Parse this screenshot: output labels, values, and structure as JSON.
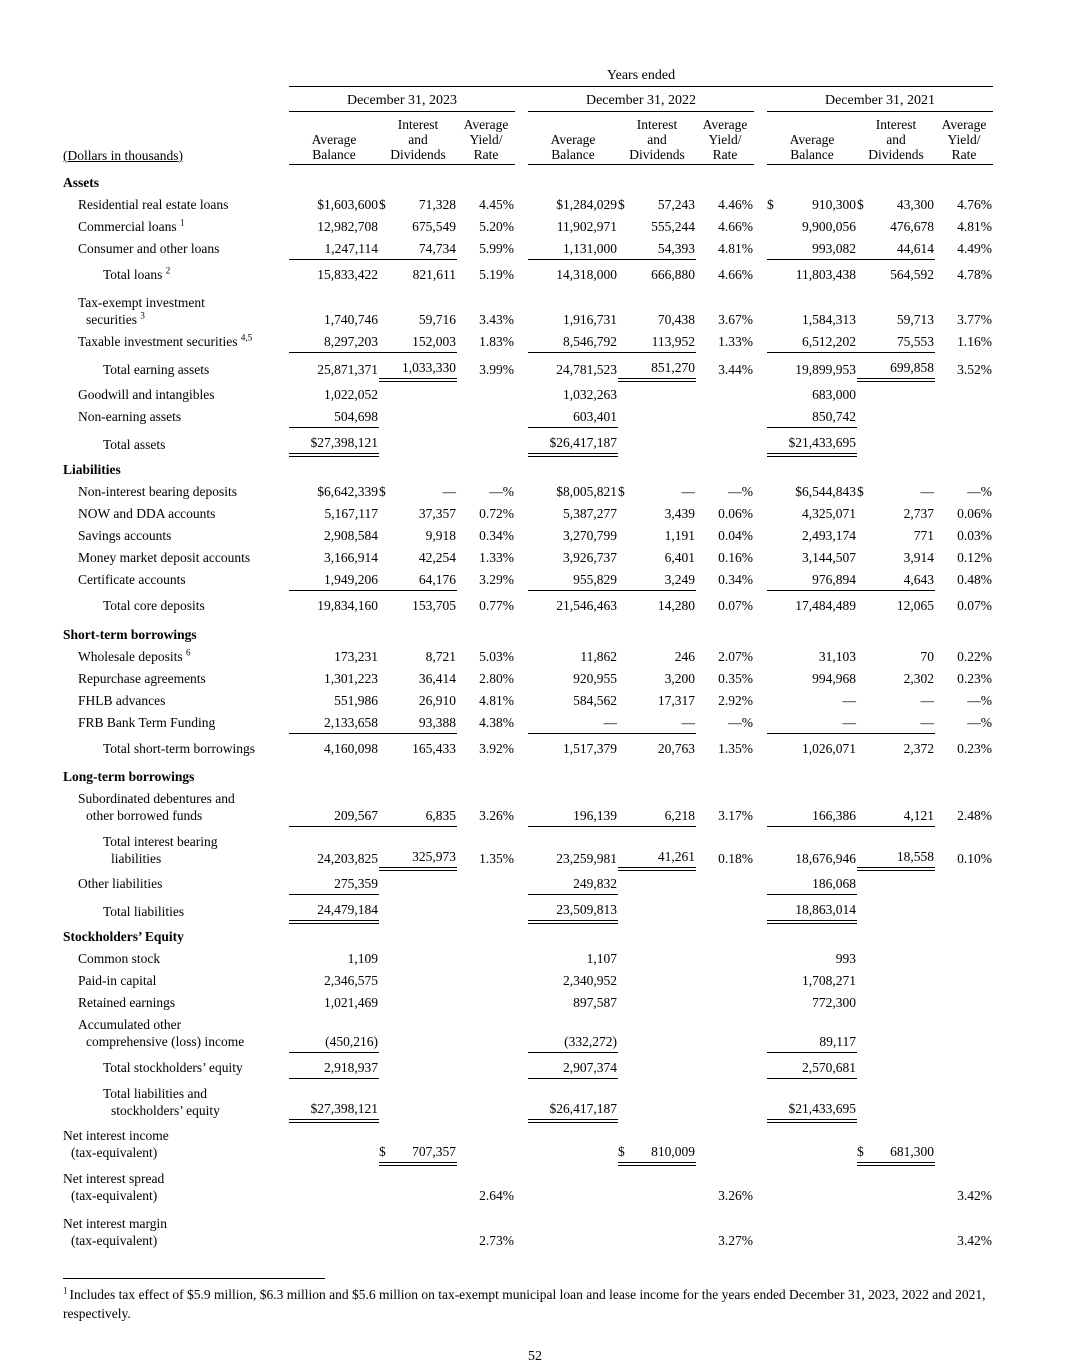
{
  "meta": {
    "page_number": "52"
  },
  "header": {
    "years_ended": "Years ended",
    "dollars_note": "(Dollars in thousands)",
    "year_groups": [
      "December 31, 2023",
      "December 31, 2022",
      "December 31, 2021"
    ],
    "col_headers": [
      "Average\nBalance",
      "Interest\nand\nDividends",
      "Average\nYield/\nRate"
    ]
  },
  "rows": [
    {
      "cls": "section",
      "label": "Assets",
      "cells": [
        "",
        "",
        "",
        "",
        "",
        "",
        "",
        "",
        ""
      ]
    },
    {
      "cls": "item",
      "label": "Residential real estate loans",
      "cells": [
        "$1,603,600",
        {
          "d": "$",
          "v": "71,328"
        },
        "4.45%",
        "$1,284,029",
        {
          "d": "$",
          "v": "57,243"
        },
        "4.46%",
        {
          "d": "$",
          "v": "910,300"
        },
        {
          "d": "$",
          "v": "43,300"
        },
        "4.76%"
      ]
    },
    {
      "cls": "item",
      "label": "Commercial loans",
      "sup": "1",
      "cells": [
        "12,982,708",
        "675,549",
        "5.20%",
        "11,902,971",
        "555,244",
        "4.66%",
        "9,900,056",
        "476,678",
        "4.81%"
      ]
    },
    {
      "cls": "item",
      "label": "Consumer and other loans",
      "cells": [
        {
          "v": "1,247,114",
          "u": "s"
        },
        {
          "v": "74,734",
          "u": "s"
        },
        "5.99%",
        {
          "v": "1,131,000",
          "u": "s"
        },
        {
          "v": "54,393",
          "u": "s"
        },
        "4.81%",
        {
          "v": "993,082",
          "u": "s"
        },
        {
          "v": "44,614",
          "u": "s"
        },
        "4.49%"
      ]
    },
    {
      "cls": "total",
      "label": "Total loans",
      "sup": "2",
      "cells": [
        "15,833,422",
        "821,611",
        "5.19%",
        "14,318,000",
        "666,880",
        "4.66%",
        "11,803,438",
        "564,592",
        "4.78%"
      ]
    },
    {
      "cls": "item",
      "gap": true,
      "lines": [
        {
          "t": "Tax-exempt investment"
        },
        {
          "t": "securities",
          "s": "3"
        }
      ],
      "cells": [
        "1,740,746",
        "59,716",
        "3.43%",
        "1,916,731",
        "70,438",
        "3.67%",
        "1,584,313",
        "59,713",
        "3.77%"
      ]
    },
    {
      "cls": "item",
      "label": "Taxable investment securities",
      "sup": "4,5",
      "cells": [
        {
          "v": "8,297,203",
          "u": "s"
        },
        {
          "v": "152,003",
          "u": "s"
        },
        "1.83%",
        {
          "v": "8,546,792",
          "u": "s"
        },
        {
          "v": "113,952",
          "u": "s"
        },
        "1.33%",
        {
          "v": "6,512,202",
          "u": "s"
        },
        {
          "v": "75,553",
          "u": "s"
        },
        "1.16%"
      ]
    },
    {
      "cls": "total",
      "label": "Total earning assets",
      "cells": [
        "25,871,371",
        {
          "v": "1,033,330",
          "u": "d"
        },
        "3.99%",
        "24,781,523",
        {
          "v": "851,270",
          "u": "d"
        },
        "3.44%",
        "19,899,953",
        {
          "v": "699,858",
          "u": "d"
        },
        "3.52%"
      ]
    },
    {
      "cls": "item",
      "label": "Goodwill and intangibles",
      "cells": [
        "1,022,052",
        "",
        "",
        "1,032,263",
        "",
        "",
        "683,000",
        "",
        ""
      ]
    },
    {
      "cls": "item",
      "label": "Non-earning assets",
      "cells": [
        {
          "v": "504,698",
          "u": "s"
        },
        "",
        "",
        {
          "v": "603,401",
          "u": "s"
        },
        "",
        "",
        {
          "v": "850,742",
          "u": "s"
        },
        "",
        ""
      ]
    },
    {
      "cls": "total",
      "label": "Total assets",
      "cells": [
        {
          "v": "$27,398,121",
          "u": "d"
        },
        "",
        "",
        {
          "v": "$26,417,187",
          "u": "d"
        },
        "",
        "",
        {
          "v": "$21,433,695",
          "u": "d"
        },
        "",
        ""
      ]
    },
    {
      "cls": "section",
      "label": "Liabilities",
      "cells": [
        "",
        "",
        "",
        "",
        "",
        "",
        "",
        "",
        ""
      ]
    },
    {
      "cls": "item",
      "label": "Non-interest bearing deposits",
      "cells": [
        "$6,642,339",
        {
          "d": "$",
          "v": "—"
        },
        "—%",
        "$8,005,821",
        {
          "d": "$",
          "v": "—"
        },
        "—%",
        "$6,544,843",
        {
          "d": "$",
          "v": "—"
        },
        "—%"
      ]
    },
    {
      "cls": "item",
      "label": "NOW and DDA accounts",
      "cells": [
        "5,167,117",
        "37,357",
        "0.72%",
        "5,387,277",
        "3,439",
        "0.06%",
        "4,325,071",
        "2,737",
        "0.06%"
      ]
    },
    {
      "cls": "item",
      "label": "Savings accounts",
      "cells": [
        "2,908,584",
        "9,918",
        "0.34%",
        "3,270,799",
        "1,191",
        "0.04%",
        "2,493,174",
        "771",
        "0.03%"
      ]
    },
    {
      "cls": "item",
      "label": "Money market deposit accounts",
      "cells": [
        "3,166,914",
        "42,254",
        "1.33%",
        "3,926,737",
        "6,401",
        "0.16%",
        "3,144,507",
        "3,914",
        "0.12%"
      ]
    },
    {
      "cls": "item",
      "label": "Certificate accounts",
      "cells": [
        {
          "v": "1,949,206",
          "u": "s"
        },
        {
          "v": "64,176",
          "u": "s"
        },
        "3.29%",
        {
          "v": "955,829",
          "u": "s"
        },
        {
          "v": "3,249",
          "u": "s"
        },
        "0.34%",
        {
          "v": "976,894",
          "u": "s"
        },
        {
          "v": "4,643",
          "u": "s"
        },
        "0.48%"
      ]
    },
    {
      "cls": "total",
      "label": "Total core deposits",
      "cells": [
        "19,834,160",
        "153,705",
        "0.77%",
        "21,546,463",
        "14,280",
        "0.07%",
        "17,484,489",
        "12,065",
        "0.07%"
      ]
    },
    {
      "cls": "section",
      "label": "Short-term borrowings",
      "cells": [
        "",
        "",
        "",
        "",
        "",
        "",
        "",
        "",
        ""
      ]
    },
    {
      "cls": "item",
      "label": "Wholesale deposits",
      "sup": "6",
      "cells": [
        "173,231",
        "8,721",
        "5.03%",
        "11,862",
        "246",
        "2.07%",
        "31,103",
        "70",
        "0.22%"
      ]
    },
    {
      "cls": "item",
      "label": "Repurchase agreements",
      "cells": [
        "1,301,223",
        "36,414",
        "2.80%",
        "920,955",
        "3,200",
        "0.35%",
        "994,968",
        "2,302",
        "0.23%"
      ]
    },
    {
      "cls": "item",
      "label": "FHLB advances",
      "cells": [
        "551,986",
        "26,910",
        "4.81%",
        "584,562",
        "17,317",
        "2.92%",
        "—",
        "—",
        "—%"
      ]
    },
    {
      "cls": "item",
      "label": "FRB Bank Term Funding",
      "cells": [
        {
          "v": "2,133,658",
          "u": "s"
        },
        {
          "v": "93,388",
          "u": "s"
        },
        "4.38%",
        {
          "v": "—",
          "u": "s"
        },
        {
          "v": "—",
          "u": "s"
        },
        "—%",
        {
          "v": "—",
          "u": "s"
        },
        {
          "v": "—",
          "u": "s"
        },
        "—%"
      ]
    },
    {
      "cls": "total",
      "label": "Total short-term borrowings",
      "cells": [
        "4,160,098",
        "165,433",
        "3.92%",
        "1,517,379",
        "20,763",
        "1.35%",
        "1,026,071",
        "2,372",
        "0.23%"
      ]
    },
    {
      "cls": "section",
      "label": "Long-term borrowings",
      "cells": [
        "",
        "",
        "",
        "",
        "",
        "",
        "",
        "",
        ""
      ]
    },
    {
      "cls": "item",
      "lines": [
        {
          "t": "Subordinated debentures and"
        },
        {
          "t": "other borrowed funds"
        }
      ],
      "cells": [
        {
          "v": "209,567",
          "u": "s"
        },
        {
          "v": "6,835",
          "u": "s"
        },
        "3.26%",
        {
          "v": "196,139",
          "u": "s"
        },
        {
          "v": "6,218",
          "u": "s"
        },
        "3.17%",
        {
          "v": "166,386",
          "u": "s"
        },
        {
          "v": "4,121",
          "u": "s"
        },
        "2.48%"
      ]
    },
    {
      "cls": "total",
      "lines": [
        {
          "t": "Total interest bearing"
        },
        {
          "t": "liabilities"
        }
      ],
      "cells": [
        "24,203,825",
        {
          "v": "325,973",
          "u": "d"
        },
        "1.35%",
        "23,259,981",
        {
          "v": "41,261",
          "u": "d"
        },
        "0.18%",
        "18,676,946",
        {
          "v": "18,558",
          "u": "d"
        },
        "0.10%"
      ]
    },
    {
      "cls": "item",
      "label": "Other liabilities",
      "cells": [
        {
          "v": "275,359",
          "u": "s"
        },
        "",
        "",
        {
          "v": "249,832",
          "u": "s"
        },
        "",
        "",
        {
          "v": "186,068",
          "u": "s"
        },
        "",
        ""
      ]
    },
    {
      "cls": "total",
      "label": "Total liabilities",
      "cells": [
        {
          "v": "24,479,184",
          "u": "d"
        },
        "",
        "",
        {
          "v": "23,509,813",
          "u": "d"
        },
        "",
        "",
        {
          "v": "18,863,014",
          "u": "d"
        },
        "",
        ""
      ]
    },
    {
      "cls": "section",
      "label": "Stockholders’ Equity",
      "cells": [
        "",
        "",
        "",
        "",
        "",
        "",
        "",
        "",
        ""
      ]
    },
    {
      "cls": "item",
      "label": "Common stock",
      "cells": [
        "1,109",
        "",
        "",
        "1,107",
        "",
        "",
        "993",
        "",
        ""
      ]
    },
    {
      "cls": "item",
      "label": "Paid-in capital",
      "cells": [
        "2,346,575",
        "",
        "",
        "2,340,952",
        "",
        "",
        "1,708,271",
        "",
        ""
      ]
    },
    {
      "cls": "item",
      "label": "Retained earnings",
      "cells": [
        "1,021,469",
        "",
        "",
        "897,587",
        "",
        "",
        "772,300",
        "",
        ""
      ]
    },
    {
      "cls": "item",
      "lines": [
        {
          "t": "Accumulated other"
        },
        {
          "t": "comprehensive (loss) income"
        }
      ],
      "cells": [
        {
          "v": "(450,216)",
          "u": "s"
        },
        "",
        "",
        {
          "v": "(332,272)",
          "u": "s"
        },
        "",
        "",
        {
          "v": "89,117",
          "u": "s"
        },
        "",
        ""
      ]
    },
    {
      "cls": "total",
      "label": "Total stockholders’ equity",
      "cells": [
        {
          "v": "2,918,937",
          "u": "s"
        },
        "",
        "",
        {
          "v": "2,907,374",
          "u": "s"
        },
        "",
        "",
        {
          "v": "2,570,681",
          "u": "s"
        },
        "",
        ""
      ]
    },
    {
      "cls": "total",
      "lines": [
        {
          "t": "Total liabilities and"
        },
        {
          "t": "stockholders’ equity"
        }
      ],
      "cells": [
        {
          "v": "$27,398,121",
          "u": "d"
        },
        "",
        "",
        {
          "v": "$26,417,187",
          "u": "d"
        },
        "",
        "",
        {
          "v": "$21,433,695",
          "u": "d"
        },
        "",
        ""
      ]
    },
    {
      "cls": "flush",
      "lines": [
        {
          "t": "Net interest income"
        },
        {
          "t": "(tax-equivalent)"
        }
      ],
      "cells": [
        "",
        {
          "d": "$",
          "v": "707,357",
          "u": "d"
        },
        "",
        "",
        {
          "d": "$",
          "v": "810,009",
          "u": "d"
        },
        "",
        "",
        {
          "d": "$",
          "v": "681,300",
          "u": "d"
        },
        ""
      ]
    },
    {
      "cls": "flush",
      "lines": [
        {
          "t": "Net interest spread"
        },
        {
          "t": "(tax-equivalent)"
        }
      ],
      "cells": [
        "",
        "",
        "2.64%",
        "",
        "",
        "3.26%",
        "",
        "",
        "3.42%"
      ]
    },
    {
      "cls": "flush",
      "gap": true,
      "lines": [
        {
          "t": "Net interest margin"
        },
        {
          "t": "(tax-equivalent)"
        }
      ],
      "cells": [
        "",
        "",
        "2.73%",
        "",
        "",
        "3.27%",
        "",
        "",
        "3.42%"
      ]
    }
  ],
  "footnote": {
    "marker": "1",
    "text": "Includes tax effect of $5.9 million, $6.3 million and $5.6 million on tax-exempt municipal loan and lease income for the years ended December 31, 2023, 2022 and 2021, respectively."
  }
}
